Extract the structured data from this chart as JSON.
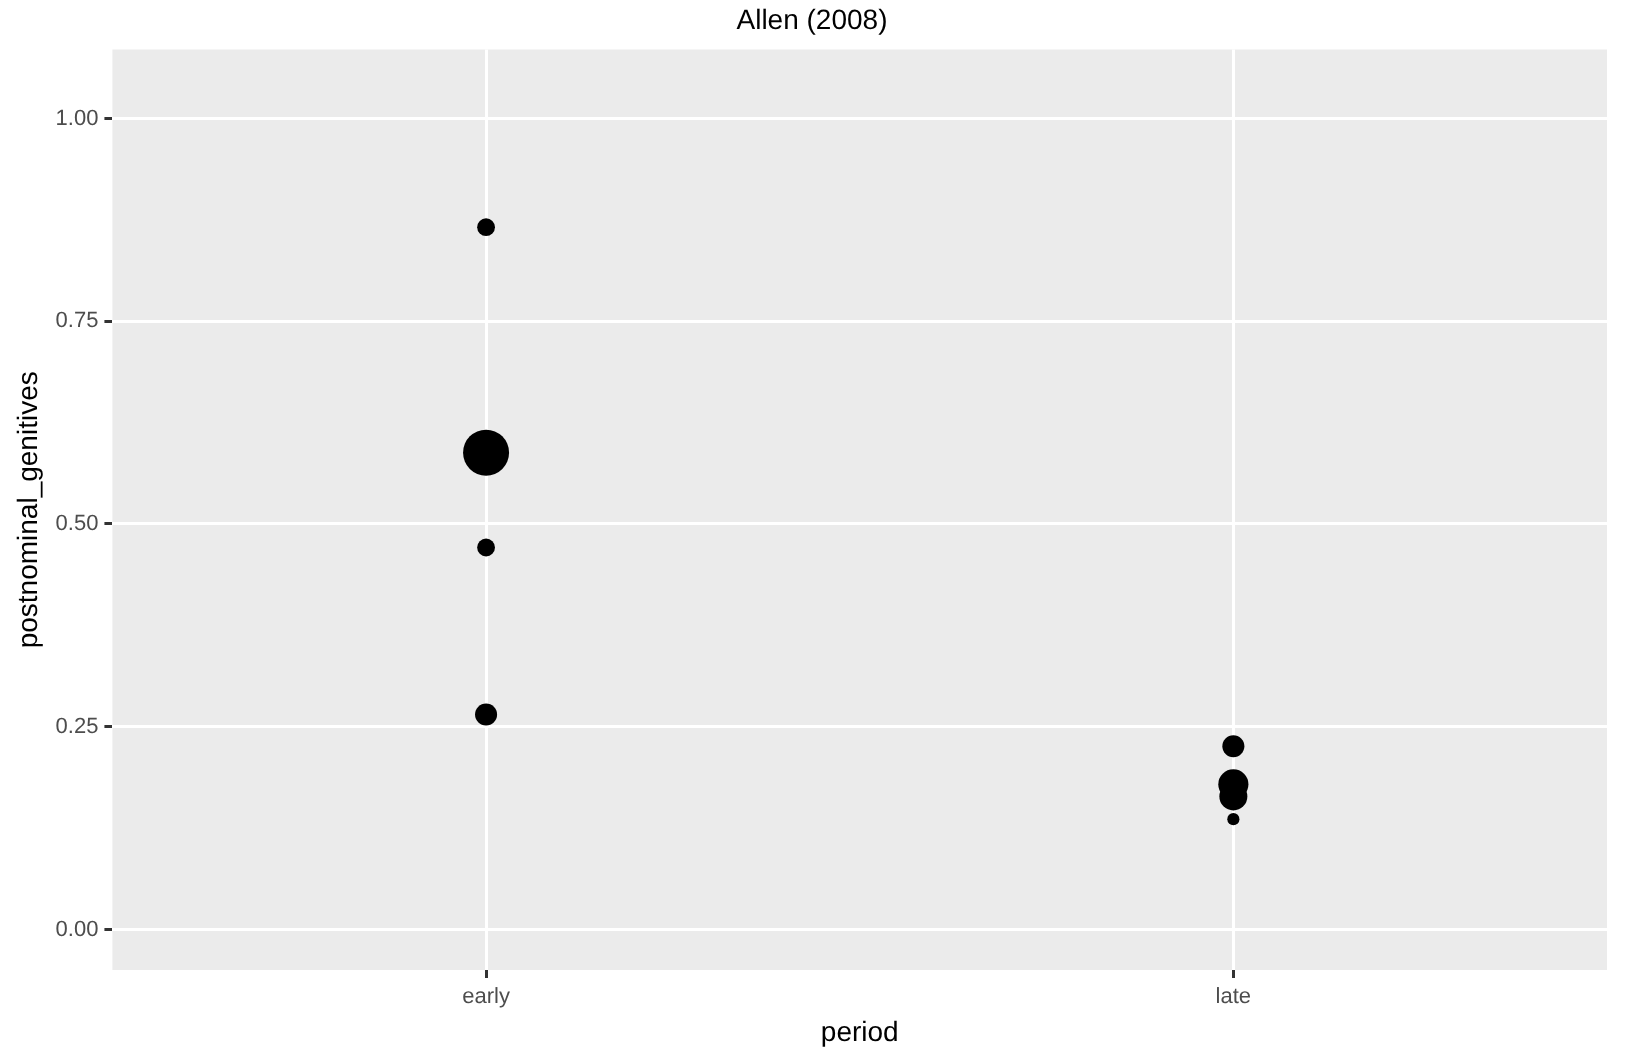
{
  "chart_data": {
    "type": "bubble",
    "title": "Allen (2008)",
    "xlabel": "period",
    "ylabel": "postnominal_genitives",
    "categories": [
      "early",
      "late"
    ],
    "series": [
      {
        "color": "#000000",
        "x": [
          "early",
          "early",
          "early",
          "early",
          "late",
          "late",
          "late",
          "late"
        ],
        "values": [
          0.866,
          0.588,
          0.471,
          0.265,
          0.226,
          0.164,
          0.179,
          0.136
        ],
        "sizes": [
          0.15,
          1,
          0.15,
          0.23,
          0.23,
          0.37,
          0.43,
          0.07
        ]
      }
    ],
    "ylim": [
      -0.05,
      1.085
    ],
    "yticks": [
      {
        "value": 0,
        "label": "0.00"
      },
      {
        "value": 0.25,
        "label": "0.25"
      },
      {
        "value": 0.5,
        "label": "0.50"
      },
      {
        "value": 0.75,
        "label": "0.75"
      },
      {
        "value": 1,
        "label": "1.00"
      }
    ],
    "grid": true,
    "legend": false
  }
}
